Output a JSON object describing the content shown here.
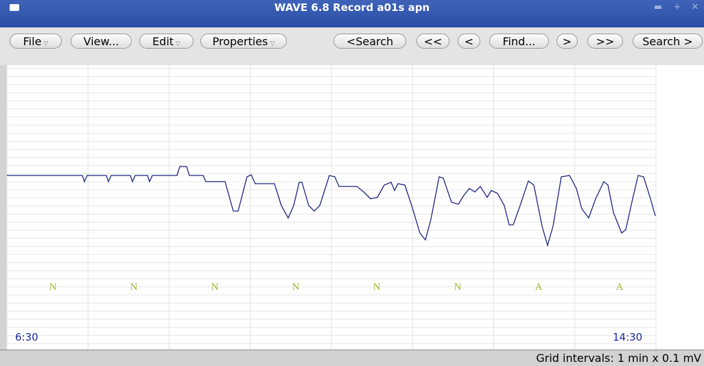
{
  "window": {
    "title": "WAVE 6.8  Record a01s apn"
  },
  "toolbar": {
    "buttons": [
      "File",
      "View...",
      "Edit",
      "Properties",
      "<Search",
      "<<",
      "<",
      "Find...",
      ">",
      ">>",
      "Search >"
    ]
  },
  "signal": {
    "annotations": [
      "N",
      "N",
      "N",
      "N",
      "N",
      "N",
      "A",
      "A"
    ],
    "time_start": "6:30",
    "time_end": "14:30"
  },
  "status": "Grid intervals: 1 min x 0.1 mV"
}
